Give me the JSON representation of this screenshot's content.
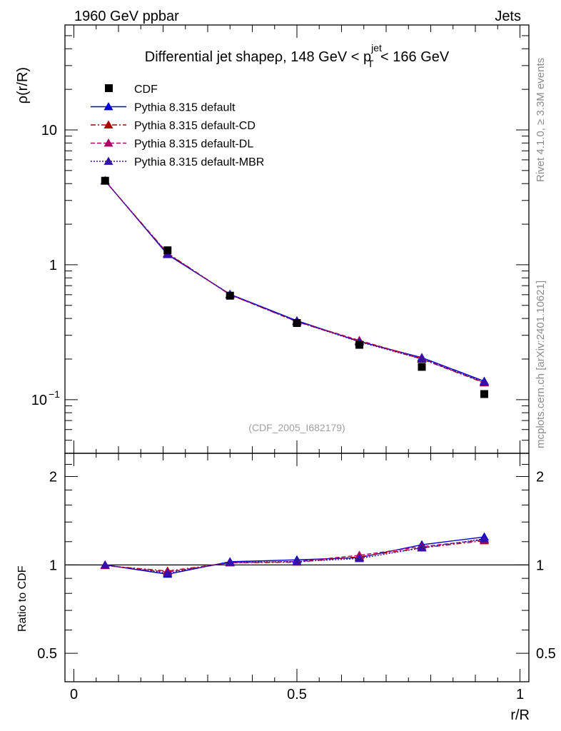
{
  "header": {
    "beam": "1960 GeV ppbar",
    "process": "Jets"
  },
  "side_labels": {
    "rivet": "Rivet 4.1.0, ≥ 3.3M events",
    "mcplots": "mcplots.cern.ch [arXiv:2401.10621]"
  },
  "chart_data": {
    "type": "line",
    "title_parts": {
      "prefix": "Differential jet shapeρ, 148 GeV < p",
      "sup": "jet",
      "sub": "T",
      "suffix": " < 166 GeV"
    },
    "analysis_id": "(CDF_2005_I682179)",
    "xlabel": "r/R",
    "ylabel": "ρ(r/R)",
    "ratio_ylabel": "Ratio to CDF",
    "xlim": [
      -0.02,
      1.02
    ],
    "ylim": [
      0.04,
      60
    ],
    "yscale": "log",
    "ratio_ylim": [
      0.4,
      2.4
    ],
    "ratio_yscale": "log",
    "x_ticks": [
      {
        "value": 0,
        "label": "0"
      },
      {
        "value": 0.5,
        "label": "0.5"
      },
      {
        "value": 1,
        "label": "1"
      }
    ],
    "y_ticks": [
      {
        "value": 0.1,
        "label": "10",
        "exp": "−1"
      },
      {
        "value": 1,
        "label": "1",
        "exp": ""
      },
      {
        "value": 10,
        "label": "10",
        "exp": ""
      }
    ],
    "ratio_ticks": [
      {
        "value": 0.5,
        "label": "0.5"
      },
      {
        "value": 1,
        "label": "1"
      },
      {
        "value": 2,
        "label": "2"
      }
    ],
    "x": [
      0.07,
      0.21,
      0.35,
      0.5,
      0.64,
      0.78,
      0.92
    ],
    "data": {
      "name": "CDF",
      "color": "#000000",
      "values": [
        4.2,
        1.28,
        0.59,
        0.37,
        0.255,
        0.175,
        0.11
      ]
    },
    "series": [
      {
        "name": "Pythia 8.315 default",
        "color": "#0000cc",
        "dash": "",
        "values": [
          4.2,
          1.19,
          0.605,
          0.385,
          0.27,
          0.205,
          0.137
        ]
      },
      {
        "name": "Pythia 8.315 default-CD",
        "color": "#aa0000",
        "dash": "7,3,2,3",
        "values": [
          4.18,
          1.22,
          0.6,
          0.378,
          0.272,
          0.2,
          0.133
        ]
      },
      {
        "name": "Pythia 8.315 default-DL",
        "color": "#aa0066",
        "dash": "6,3",
        "values": [
          4.18,
          1.21,
          0.6,
          0.38,
          0.275,
          0.202,
          0.134
        ]
      },
      {
        "name": "Pythia 8.315 default-MBR",
        "color": "#3311aa",
        "dash": "2,2",
        "values": [
          4.2,
          1.2,
          0.602,
          0.38,
          0.268,
          0.2,
          0.135
        ]
      }
    ],
    "legend_position": "top-left"
  }
}
